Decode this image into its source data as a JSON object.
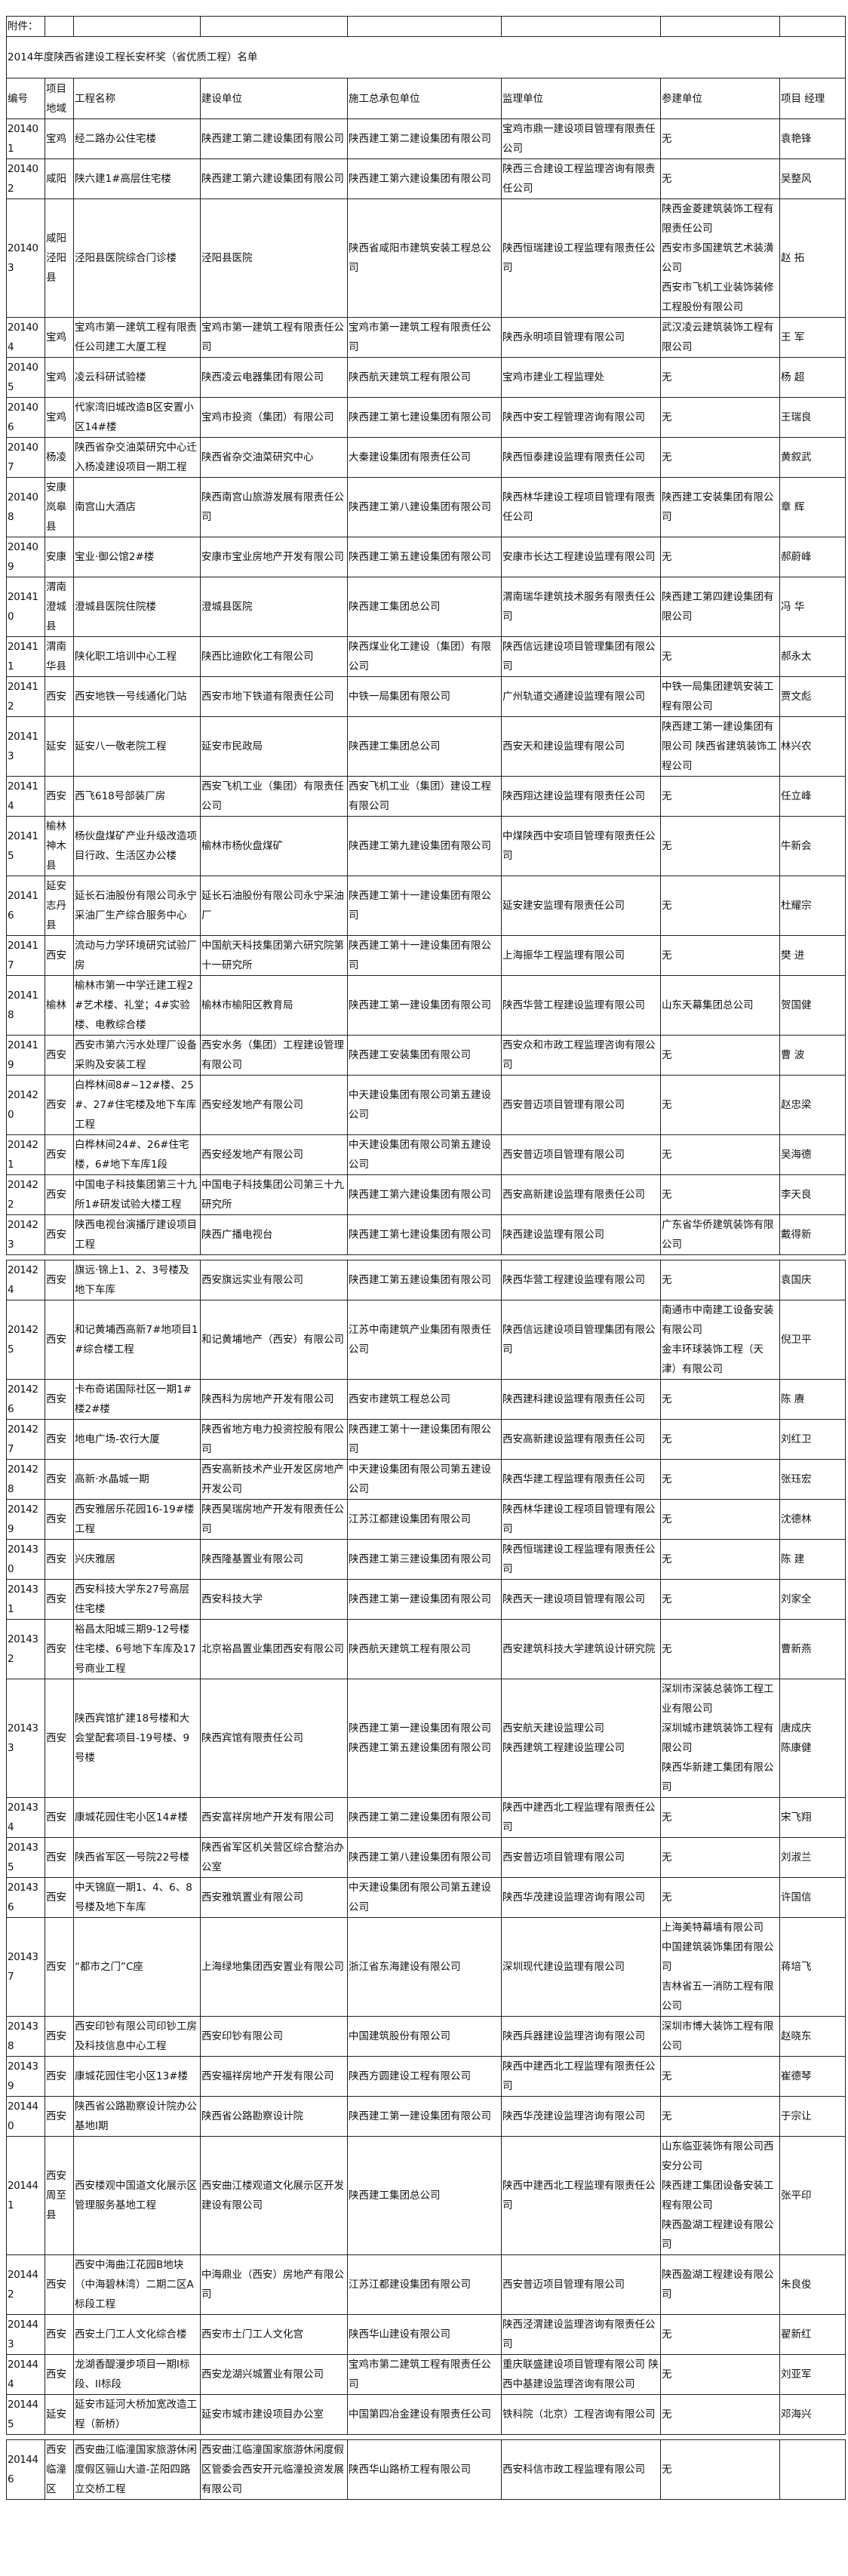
{
  "attachment_label": "附件：",
  "title": "2014年度陕西省建设工程长安杯奖（省优质工程）名单",
  "headers": [
    "编号",
    "项目地域",
    "工程名称",
    "建设单位",
    "施工总承包单位",
    "监理单位",
    "参建单位",
    "项目 经理"
  ],
  "rows": [
    {
      "id": "201401",
      "region": "宝鸡",
      "name": "经二路办公住宅楼",
      "builder": "陕西建工第二建设集团有限公司",
      "contractor": "陕西建工第二建设集团有限公司",
      "supervisor": "宝鸡市鼎一建设项目管理有限责任公司",
      "participant": "无",
      "manager": "袁艳锋"
    },
    {
      "id": "201402",
      "region": "咸阳",
      "name": "陕六建1#高层住宅楼",
      "builder": "陕西建工第六建设集团有限公司",
      "contractor": "陕西建工第六建设集团有限公司",
      "supervisor": "陕西三合建设工程监理咨询有限责任公司",
      "participant": "无",
      "manager": "吴整风"
    },
    {
      "id": "201403",
      "region": "咸阳泾阳县",
      "name": "泾阳县医院综合门诊楼",
      "builder": "泾阳县医院",
      "contractor": "陕西省咸阳市建筑安装工程总公司",
      "supervisor": "陕西恒瑞建设工程监理有限责任公司",
      "participant": "陕西金菱建筑装饰工程有限责任公司\n西安市多国建筑艺术装潢公司\n西安市飞机工业装饰装修工程股份有限公司",
      "manager": "赵 拓"
    },
    {
      "id": "201404",
      "region": "宝鸡",
      "name": "宝鸡市第一建筑工程有限责任公司建工大厦工程",
      "builder": "宝鸡市第一建筑工程有限责任公司",
      "contractor": "宝鸡市第一建筑工程有限责任公司",
      "supervisor": "陕西永明项目管理有限公司",
      "participant": "武汉凌云建筑装饰工程有限公司",
      "manager": "王 军"
    },
    {
      "id": "201405",
      "region": "宝鸡",
      "name": "凌云科研试验楼",
      "builder": "陕西凌云电器集团有限公司",
      "contractor": "陕西航天建筑工程有限公司",
      "supervisor": "宝鸡市建业工程监理处",
      "participant": "无",
      "manager": "杨 超"
    },
    {
      "id": "201406",
      "region": "宝鸡",
      "name": "代家湾旧城改造B区安置小区14#楼",
      "builder": "宝鸡市投资（集团）有限公司",
      "contractor": "陕西建工第七建设集团有限公司",
      "supervisor": "陕西中安工程管理咨询有限公司",
      "participant": "无",
      "manager": "王瑞良"
    },
    {
      "id": "201407",
      "region": "杨凌",
      "name": "陕西省杂交油菜研究中心迁入杨凌建设项目一期工程",
      "builder": "陕西省杂交油菜研究中心",
      "contractor": "大秦建设集团有限责任公司",
      "supervisor": "陕西恒泰建设监理有限责任公司",
      "participant": "无",
      "manager": "黄叙武"
    },
    {
      "id": "201408",
      "region": "安康岚皋县",
      "name": "南宫山大酒店",
      "builder": "陕西南宫山旅游发展有限责任公司",
      "contractor": "陕西建工第八建设集团有限公司",
      "supervisor": "陕西林华建设工程项目管理有限责任公司",
      "participant": "陕西建工安装集团有限公司",
      "manager": "章 辉"
    },
    {
      "id": "201409",
      "region": "安康",
      "name": "宝业·御公馆2#楼",
      "builder": "安康市宝业房地产开发有限公司",
      "contractor": "陕西建工第五建设集团有限公司",
      "supervisor": "安康市长达工程建设监理有限公司",
      "participant": "无",
      "manager": "郝蔚峰"
    },
    {
      "id": "201410",
      "region": "渭南澄城县",
      "name": "澄城县医院住院楼",
      "builder": "澄城县医院",
      "contractor": "陕西建工集团总公司",
      "supervisor": "渭南瑞华建筑技术服务有限责任公司",
      "participant": "陕西建工第四建设集团有限公司",
      "manager": "冯 华"
    },
    {
      "id": "201411",
      "region": "渭南华县",
      "name": "陕化职工培训中心工程",
      "builder": "陕西比迪欧化工有限公司",
      "contractor": "陕西煤业化工建设（集团）有限公司",
      "supervisor": "陕西信远建设项目管理集团有限公司",
      "participant": "无",
      "manager": "郝永太"
    },
    {
      "id": "201412",
      "region": "西安",
      "name": "西安地铁一号线通化门站",
      "builder": "西安市地下铁道有限责任公司",
      "contractor": "中铁一局集团有限公司",
      "supervisor": "广州轨道交通建设监理有限公司",
      "participant": "中铁一局集团建筑安装工程有限公司",
      "manager": "贾文彪"
    },
    {
      "id": "201413",
      "region": "延安",
      "name": "延安八一敬老院工程",
      "builder": "延安市民政局",
      "contractor": "陕西建工集团总公司",
      "supervisor": "西安天和建设监理有限公司",
      "participant": "陕西建工第一建设集团有限公司        陕西省建筑装饰工程公司",
      "manager": "林兴农"
    },
    {
      "id": "201414",
      "region": "西安",
      "name": "西飞618号部装厂房",
      "builder": "西安飞机工业（集团）有限责任公司",
      "contractor": "西安飞机工业（集团）建设工程有限公司",
      "supervisor": "陕西翔达建设监理有限责任公司",
      "participant": "无",
      "manager": "任立峰"
    },
    {
      "id": "201415",
      "region": "榆林神木县",
      "name": "杨伙盘煤矿产业升级改造项目行政、生活区办公楼",
      "builder": "榆林市杨伙盘煤矿",
      "contractor": "陕西建工第九建设集团有限公司",
      "supervisor": "中煤陕西中安项目管理有限责任公司",
      "participant": "无",
      "manager": "牛新会"
    },
    {
      "id": "201416",
      "region": "延安志丹县",
      "name": "延长石油股份有限公司永宁采油厂生产综合服务中心",
      "builder": "延长石油股份有限公司永宁采油厂",
      "contractor": "陕西建工第十一建设集团有限公司",
      "supervisor": "延安建安监理有限责任公司",
      "participant": "无",
      "manager": "杜耀宗"
    },
    {
      "id": "201417",
      "region": "西安",
      "name": "流动与力学环境研究试验厂房",
      "builder": "中国航天科技集团第六研究院第十一研究所",
      "contractor": "陕西建工第十一建设集团有限公司",
      "supervisor": "上海振华工程监理有限公司",
      "participant": "无",
      "manager": "樊 进"
    },
    {
      "id": "201418",
      "region": "榆林",
      "name": "榆林市第一中学迁建工程2#艺术楼、礼堂；4#实验楼、电教综合楼",
      "builder": "榆林市榆阳区教育局",
      "contractor": "陕西建工第一建设集团有限公司",
      "supervisor": "陕西华营工程建设监理有限公司",
      "participant": "山东天幕集团总公司",
      "manager": "贺国健"
    },
    {
      "id": "201419",
      "region": "西安",
      "name": "西安市第六污水处理厂设备采购及安装工程",
      "builder": "西安水务（集团）工程建设管理有限公司",
      "contractor": "陕西建工安装集团有限公司",
      "supervisor": "西安众和市政工程监理咨询有限公司",
      "participant": "无",
      "manager": "曹 波"
    },
    {
      "id": "201420",
      "region": "西安",
      "name": "白桦林间8#~12#楼、25#、27#住宅楼及地下车库工程",
      "builder": "西安经发地产有限公司",
      "contractor": "中天建设集团有限公司第五建设公司",
      "supervisor": "西安普迈项目管理有限公司",
      "participant": "无",
      "manager": "赵忠梁"
    },
    {
      "id": "201421",
      "region": "西安",
      "name": "白桦林间24#、26#住宅楼，6#地下车库1段",
      "builder": "西安经发地产有限公司",
      "contractor": "中天建设集团有限公司第五建设公司",
      "supervisor": "西安普迈项目管理有限公司",
      "participant": "无",
      "manager": "吴海德"
    },
    {
      "id": "201422",
      "region": "西安",
      "name": "中国电子科技集团第三十九所1#研发试验大楼工程",
      "builder": "中国电子科技集团公司第三十九研究所",
      "contractor": "陕西建工第六建设集团有限公司",
      "supervisor": "西安高新建设监理有限责任公司",
      "participant": "无",
      "manager": "李天良"
    },
    {
      "id": "201423",
      "region": "西安",
      "name": "陕西电视台演播厅建设项目工程",
      "builder": "陕西广播电视台",
      "contractor": "陕西建工第七建设集团有限公司",
      "supervisor": "陕西建设监理有限公司",
      "participant": "广东省华侨建筑装饰有限公司",
      "manager": "戴得新"
    },
    {
      "id": "201424",
      "region": "西安",
      "name": "旗远·锦上1、2、3号楼及地下车库",
      "builder": "西安旗远实业有限公司",
      "contractor": "陕西建工第五建设集团有限公司",
      "supervisor": "陕西华营工程建设监理有限公司",
      "participant": "无",
      "manager": "袁国庆"
    },
    {
      "id": "201425",
      "region": "西安",
      "name": "和记黄埔西高新7#地项目1#综合楼工程",
      "builder": "和记黄埔地产（西安）有限公司",
      "contractor": "江苏中南建筑产业集团有限责任公司",
      "supervisor": "陕西信远建设项目管理集团有限公司",
      "participant": "南通市中南建工设备安装有限公司\n金丰环球装饰工程（天津）有限公司",
      "manager": "倪卫平"
    },
    {
      "id": "201426",
      "region": "西安",
      "name": "卡布奇诺国际社区一期1#楼2#楼",
      "builder": "陕西科为房地产开发有限公司",
      "contractor": "西安市建筑工程总公司",
      "supervisor": "陕西建科建设监理有限责任公司",
      "participant": "无",
      "manager": "陈 赓"
    },
    {
      "id": "201427",
      "region": "西安",
      "name": "地电广场-农行大厦",
      "builder": "陕西省地方电力投资控股有限公司",
      "contractor": "陕西建工第十一建设集团有限公司",
      "supervisor": "西安高新建设监理有限责任公司",
      "participant": "无",
      "manager": "刘红卫"
    },
    {
      "id": "201428",
      "region": "西安",
      "name": "高新·水晶城一期",
      "builder": "西安高新技术产业开发区房地产开发公司",
      "contractor": "中天建设集团有限公司第五建设公司",
      "supervisor": "陕西华建工程监理有限责任公司",
      "participant": "无",
      "manager": "张珏宏"
    },
    {
      "id": "201429",
      "region": "西安",
      "name": "西安雅居乐花园16-19#楼工程",
      "builder": "陕西昊瑞房地产开发有限责任公司",
      "contractor": "江苏江都建设集团有限公司",
      "supervisor": "陕西林华建设工程项目管理有限公司",
      "participant": "无",
      "manager": "沈德林"
    },
    {
      "id": "201430",
      "region": "西安",
      "name": "兴庆雅居",
      "builder": "陕西隆基置业有限公司",
      "contractor": "陕西建工第三建设集团有限公司",
      "supervisor": "陕西恒瑞建设工程监理有限责任公司",
      "participant": "无",
      "manager": "陈 建"
    },
    {
      "id": "201431",
      "region": "西安",
      "name": "西安科技大学东27号高层住宅楼",
      "builder": "西安科技大学",
      "contractor": "陕西建工第一建设集团有限公司",
      "supervisor": "陕西天一建设项目管理有限公司",
      "participant": "无",
      "manager": "刘家全"
    },
    {
      "id": "201432",
      "region": "西安",
      "name": "裕昌太阳城三期9-12号楼住宅楼、6号地下车库及17号商业工程",
      "builder": "北京裕昌置业集团西安有限公司",
      "contractor": "陕西航天建筑工程有限公司",
      "supervisor": "西安建筑科技大学建筑设计研究院",
      "participant": "无",
      "manager": "曹新燕"
    },
    {
      "id": "201433",
      "region": "西安",
      "name": "陕西宾馆扩建18号楼和大会堂配套项目-19号楼、9号楼",
      "builder": "陕西宾馆有限责任公司",
      "contractor": "陕西建工第一建设集团有限公司\n陕西建工第五建设集团有限公司",
      "supervisor": "西安航天建设监理公司\n陕西建筑工程建设监理公司",
      "participant": "深圳市深装总装饰工程工业有限公司\n深圳城市建筑装饰工程有限公司\n陕西华新建工集团有限公司",
      "manager": "唐成庆\n陈康健"
    },
    {
      "id": "201434",
      "region": "西安",
      "name": "康城花园住宅小区14#楼",
      "builder": "西安富祥房地产开发有限公司",
      "contractor": "陕西建工第二建设集团有限公司",
      "supervisor": "陕西中建西北工程监理有限责任公司",
      "participant": "无",
      "manager": "宋飞翔"
    },
    {
      "id": "201435",
      "region": "西安",
      "name": "陕西省军区一号院22号楼",
      "builder": "陕西省军区机关营区综合整治办公室",
      "contractor": "陕西建工第八建设集团有限公司",
      "supervisor": "西安普迈项目管理有限公司",
      "participant": "无",
      "manager": "刘淑兰"
    },
    {
      "id": "201436",
      "region": "西安",
      "name": "中天锦庭一期1、4、6、8号楼及地下车库",
      "builder": "西安雅筑置业有限公司",
      "contractor": "中天建设集团有限公司第五建设公司",
      "supervisor": "陕西华茂建设监理咨询有限公司",
      "participant": "无",
      "manager": "许国信"
    },
    {
      "id": "201437",
      "region": "西安",
      "name": "“都市之门”C座",
      "builder": "上海绿地集团西安置业有限公司",
      "contractor": "浙江省东海建设有限公司",
      "supervisor": "深圳现代建设监理有限公司",
      "participant": "上海美特幕墙有限公司\n中国建筑装饰集团有限公司\n吉林省五一消防工程有限公司",
      "manager": "蒋培飞"
    },
    {
      "id": "201438",
      "region": "西安",
      "name": "西安印钞有限公司印钞工房及科技信息中心工程",
      "builder": "西安印钞有限公司",
      "contractor": "中国建筑股份有限公司",
      "supervisor": "陕西兵器建设监理咨询有限公司",
      "participant": "深圳市博大装饰工程有限公司",
      "manager": "赵晓东"
    },
    {
      "id": "201439",
      "region": "西安",
      "name": "康城花园住宅小区13#楼",
      "builder": "西安福祥房地产开发有限公司",
      "contractor": "陕西方圆建设工程有限公司",
      "supervisor": "陕西中建西北工程监理有限责任公司",
      "participant": "无",
      "manager": "崔德琴"
    },
    {
      "id": "201440",
      "region": "西安",
      "name": "陕西省公路勘察设计院办公基地I期",
      "builder": "陕西省公路勘察设计院",
      "contractor": "陕西建工第一建设集团有限公司",
      "supervisor": "陕西华茂建设监理咨询有限公司",
      "participant": "无",
      "manager": "于宗让"
    },
    {
      "id": "201441",
      "region": "西安周至县",
      "name": "西安楼观中国道文化展示区管理服务基地工程",
      "builder": "西安曲江楼观道文化展示区开发建设有限公司",
      "contractor": "陕西建工集团总公司",
      "supervisor": "陕西中建西北工程监理有限责任公司",
      "participant": "山东临亚装饰有限公司西安分公司\n陕西建工集团设备安装工程有限公司\n陕西盈湖工程建设有限公司",
      "manager": "张平印"
    },
    {
      "id": "201442",
      "region": "西安",
      "name": "西安中海曲江花园B地块（中海碧林湾）二期二区A标段工程",
      "builder": "中海鼎业（西安）房地产有限公司",
      "contractor": "江苏江都建设集团有限公司",
      "supervisor": "西安普迈项目管理有限公司",
      "participant": "陕西盈湖工程建设有限公司",
      "manager": "朱良俊"
    },
    {
      "id": "201443",
      "region": "西安",
      "name": "西安土门工人文化综合楼",
      "builder": "西安市土门工人文化宫",
      "contractor": "陕西华山建设有限公司",
      "supervisor": "陕西泾渭建设监理咨询有限责任公司",
      "participant": "无",
      "manager": "翟新红"
    },
    {
      "id": "201444",
      "region": "西安",
      "name": "龙湖香醍漫步项目一期I标段、II标段",
      "builder": "西安龙湖兴城置业有限公司",
      "contractor": "宝鸡市第二建筑工程有限责任公司",
      "supervisor": "重庆联盛建设项目管理有限公司            陕西中基建设监理咨询有限公司",
      "participant": "无",
      "manager": "刘亚军"
    },
    {
      "id": "201445",
      "region": "延安",
      "name": "延安市延河大桥加宽改造工程（新桥）",
      "builder": "延安市城市建设项目办公室",
      "contractor": "中国第四冶金建设有限责任公司",
      "supervisor": "铁科院（北京）工程咨询有限公司",
      "participant": "无",
      "manager": "邓海兴"
    },
    {
      "id": "201446",
      "region": "西安临潼区",
      "name": "西安曲江临潼国家旅游休闲度假区骊山大道-芷阳四路立交桥工程",
      "builder": "西安曲江临潼国家旅游休闲度假区管委会西安开元临潼投资发展有限公司",
      "contractor": "陕西华山路桥工程有限公司",
      "supervisor": "西安科信市政工程监理有限公司",
      "participant": "无",
      "manager": ""
    }
  ]
}
